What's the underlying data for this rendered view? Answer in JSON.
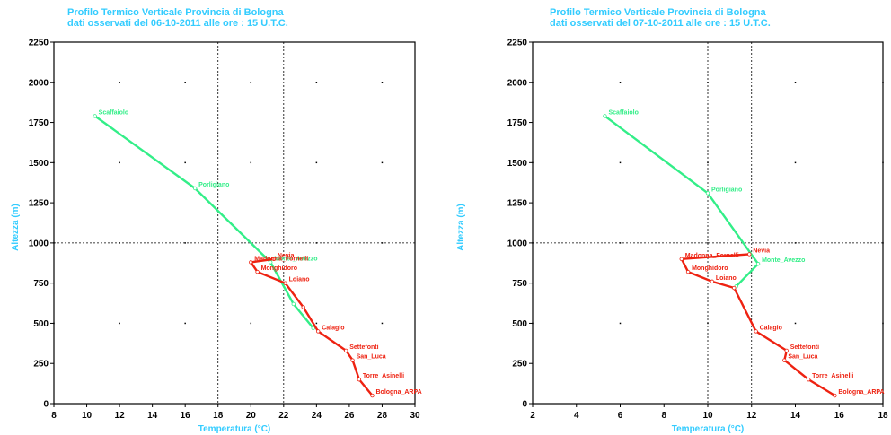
{
  "colors": {
    "accent": "#33ccff",
    "green_line": "#33ee88",
    "red_line": "#ee2211"
  },
  "chart_data": [
    {
      "type": "line",
      "title": "Profilo Termico Verticale Provincia di Bologna",
      "subtitle": "dati osservati del 06-10-2011 alle ore : 15 U.T.C.",
      "xlabel": "Temperatura (°C)",
      "ylabel": "Altezza (m)",
      "xlim": [
        8,
        30
      ],
      "ylim": [
        0,
        2250
      ],
      "xticks": [
        8,
        10,
        12,
        14,
        16,
        18,
        20,
        22,
        24,
        26,
        28,
        30
      ],
      "yticks": [
        0,
        250,
        500,
        750,
        1000,
        1250,
        1500,
        1750,
        2000,
        2250
      ],
      "dashed_x": [
        18,
        22
      ],
      "dashed_y": [
        1000
      ],
      "series": [
        {
          "color": "#33ee88",
          "points": [
            {
              "name": "Scaffaiolo",
              "x": 10.5,
              "y": 1790
            },
            {
              "name": "Porligiano",
              "x": 16.6,
              "y": 1340
            },
            {
              "name": "Monte_Avezzo",
              "x": 21.2,
              "y": 880
            },
            {
              "name": "",
              "x": 22.6,
              "y": 620
            },
            {
              "name": "",
              "x": 23.8,
              "y": 470
            }
          ]
        },
        {
          "color": "#ee2211",
          "points": [
            {
              "name": "Nevia",
              "x": 21.4,
              "y": 900
            },
            {
              "name": "Madonna_Fornelli",
              "x": 20.0,
              "y": 880
            },
            {
              "name": "Monghidoro",
              "x": 20.4,
              "y": 820
            },
            {
              "name": "Loiano",
              "x": 22.1,
              "y": 750
            },
            {
              "name": "",
              "x": 23.2,
              "y": 600
            },
            {
              "name": "Calagio",
              "x": 24.1,
              "y": 450
            },
            {
              "name": "Settefonti",
              "x": 25.8,
              "y": 330
            },
            {
              "name": "San_Luca",
              "x": 26.2,
              "y": 270
            },
            {
              "name": "Torre_Asinelli",
              "x": 26.6,
              "y": 150
            },
            {
              "name": "Bologna_ARPA",
              "x": 27.4,
              "y": 50
            }
          ]
        }
      ]
    },
    {
      "type": "line",
      "title": "Profilo Termico Verticale Provincia di Bologna",
      "subtitle": "dati osservati del 07-10-2011 alle ore : 15 U.T.C.",
      "xlabel": "Temperatura (°C)",
      "ylabel": "Altezza (m)",
      "xlim": [
        2,
        18
      ],
      "ylim": [
        0,
        2250
      ],
      "xticks": [
        2,
        4,
        6,
        8,
        10,
        12,
        14,
        16,
        18
      ],
      "yticks": [
        0,
        250,
        500,
        750,
        1000,
        1250,
        1500,
        1750,
        2000,
        2250
      ],
      "dashed_x": [
        10,
        12
      ],
      "dashed_y": [
        1000
      ],
      "series": [
        {
          "color": "#33ee88",
          "points": [
            {
              "name": "Scaffaiolo",
              "x": 5.3,
              "y": 1790
            },
            {
              "name": "Porligiano",
              "x": 10.0,
              "y": 1310
            },
            {
              "name": "Monte_Avezzo",
              "x": 12.3,
              "y": 870
            },
            {
              "name": "",
              "x": 11.3,
              "y": 730
            }
          ]
        },
        {
          "color": "#ee2211",
          "points": [
            {
              "name": "Nevia",
              "x": 11.9,
              "y": 930
            },
            {
              "name": "Madonna_Fornelli",
              "x": 8.8,
              "y": 900
            },
            {
              "name": "Monghidoro",
              "x": 9.1,
              "y": 820
            },
            {
              "name": "Loiano",
              "x": 10.2,
              "y": 760
            },
            {
              "name": "",
              "x": 11.2,
              "y": 720
            },
            {
              "name": "Calagio",
              "x": 12.2,
              "y": 450
            },
            {
              "name": "Settefonti",
              "x": 13.6,
              "y": 330
            },
            {
              "name": "San_Luca",
              "x": 13.5,
              "y": 270
            },
            {
              "name": "Torre_Asinelli",
              "x": 14.6,
              "y": 150
            },
            {
              "name": "Bologna_ARPA",
              "x": 15.8,
              "y": 50
            }
          ]
        }
      ]
    }
  ]
}
